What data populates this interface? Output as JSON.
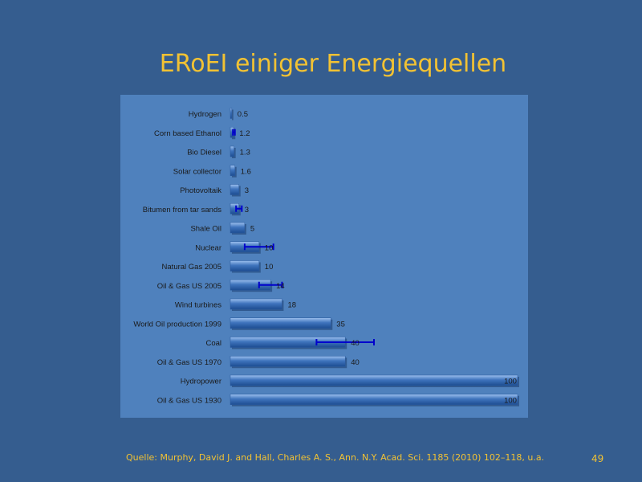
{
  "slide": {
    "title": "ERoEI einiger Energiequellen",
    "source": "Quelle: Murphy,  David J. and Hall, Charles A. S., Ann. N.Y. Acad. Sci. 1185 (2010) 102–118, u.a.",
    "page_number": "49"
  },
  "colors": {
    "background": "#355d8f",
    "panel": "#4f81bd",
    "bar": "#3f74bd",
    "error_bar": "#0000cc",
    "text": "#1a1a1a",
    "accent": "#f2c233"
  },
  "chart_data": {
    "type": "bar",
    "orientation": "horizontal",
    "title": "",
    "xlabel": "",
    "ylabel": "",
    "xlim": [
      0,
      100
    ],
    "grid": false,
    "legend": "none",
    "categories": [
      "Hydrogen",
      "Corn based Ethanol",
      "Bio Diesel",
      "Solar collector",
      "Photovoltaik",
      "Bitumen from tar sands",
      "Shale Oil",
      "Nuclear",
      "Natural Gas 2005",
      "Oil & Gas US 2005",
      "Wind turbines",
      "World Oil production 1999",
      "Coal",
      "Oil & Gas US 1970",
      "Hydropower",
      "Oil & Gas US 1930"
    ],
    "values": [
      0.5,
      1.2,
      1.3,
      1.6,
      3,
      3,
      5,
      10,
      10,
      14,
      18,
      35,
      40,
      40,
      100,
      100
    ],
    "data_labels": [
      "0.5",
      "1.2",
      "1.3",
      "1.6",
      "3",
      "3",
      "5",
      "10",
      "10",
      "14",
      "18",
      "35",
      "40",
      "40",
      "100",
      "100"
    ],
    "error_bars": [
      null,
      [
        0.9,
        1.6
      ],
      null,
      null,
      null,
      [
        2,
        4
      ],
      null,
      [
        5,
        15
      ],
      null,
      [
        10,
        18
      ],
      null,
      null,
      [
        30,
        50
      ],
      null,
      null,
      null
    ]
  }
}
